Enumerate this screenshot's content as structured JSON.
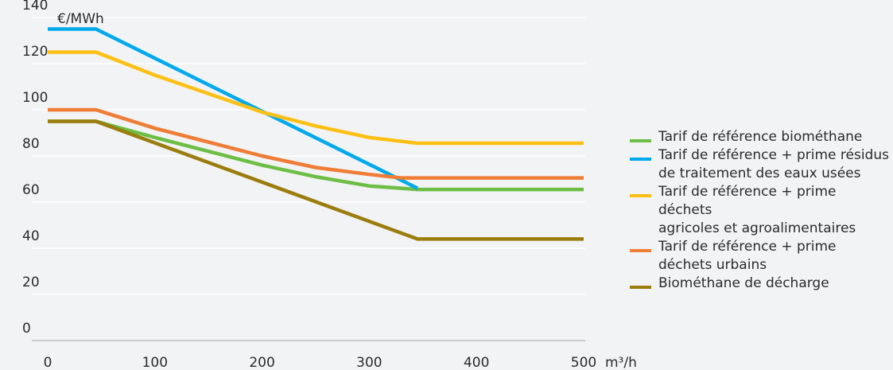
{
  "colors": {
    "background": "#f2f3f4",
    "grid": "#ffffff",
    "axis": "#b9bcbf"
  },
  "chart_data": {
    "type": "line",
    "ylabel": "€/MWh",
    "xlabel": "m³/h",
    "xlim": [
      0,
      500
    ],
    "ylim": [
      0,
      140
    ],
    "x_ticks": [
      "0",
      "100",
      "200",
      "300",
      "400",
      "500"
    ],
    "y_ticks": [
      "0",
      "20",
      "40",
      "60",
      "80",
      "100",
      "120",
      "140"
    ],
    "grid": true,
    "legend_position": "right",
    "series": [
      {
        "name": "Tarif de référence biométhane",
        "color": "#6dbe45",
        "points": [
          [
            0,
            95
          ],
          [
            45,
            95
          ],
          [
            100,
            88
          ],
          [
            150,
            82
          ],
          [
            200,
            76
          ],
          [
            250,
            71
          ],
          [
            300,
            67
          ],
          [
            345,
            65.5
          ],
          [
            500,
            65.5
          ]
        ]
      },
      {
        "name": "Tarif de référence + prime résidus de traitement des eaux usées",
        "color": "#00a9ec",
        "points": [
          [
            0,
            135
          ],
          [
            45,
            135
          ],
          [
            345,
            66
          ]
        ]
      },
      {
        "name": "Tarif de référence + prime déchets agricoles et agroalimentaires",
        "color": "#fcc015",
        "points": [
          [
            0,
            125
          ],
          [
            45,
            125
          ],
          [
            100,
            115
          ],
          [
            150,
            107
          ],
          [
            200,
            99
          ],
          [
            250,
            93
          ],
          [
            300,
            88
          ],
          [
            345,
            85.5
          ],
          [
            500,
            85.5
          ]
        ]
      },
      {
        "name": "Tarif de référence + prime déchets urbains",
        "color": "#ef7d35",
        "points": [
          [
            0,
            100
          ],
          [
            45,
            100
          ],
          [
            100,
            92
          ],
          [
            150,
            86
          ],
          [
            200,
            80
          ],
          [
            250,
            75
          ],
          [
            300,
            72
          ],
          [
            330,
            70.5
          ],
          [
            500,
            70.5
          ]
        ]
      },
      {
        "name": "Biométhane de décharge",
        "color": "#9b7d0e",
        "points": [
          [
            0,
            95
          ],
          [
            45,
            95
          ],
          [
            345,
            44
          ],
          [
            500,
            44
          ]
        ]
      }
    ],
    "legend": [
      {
        "lines": [
          "Tarif de référence biométhane"
        ]
      },
      {
        "lines": [
          "Tarif de référence + prime résidus",
          "de traitement des eaux usées"
        ]
      },
      {
        "lines": [
          "Tarif de référence + prime déchets",
          "agricoles et agroalimentaires"
        ]
      },
      {
        "lines": [
          "Tarif de référence + prime",
          "déchets urbains"
        ]
      },
      {
        "lines": [
          "Biométhane de décharge"
        ]
      }
    ]
  }
}
